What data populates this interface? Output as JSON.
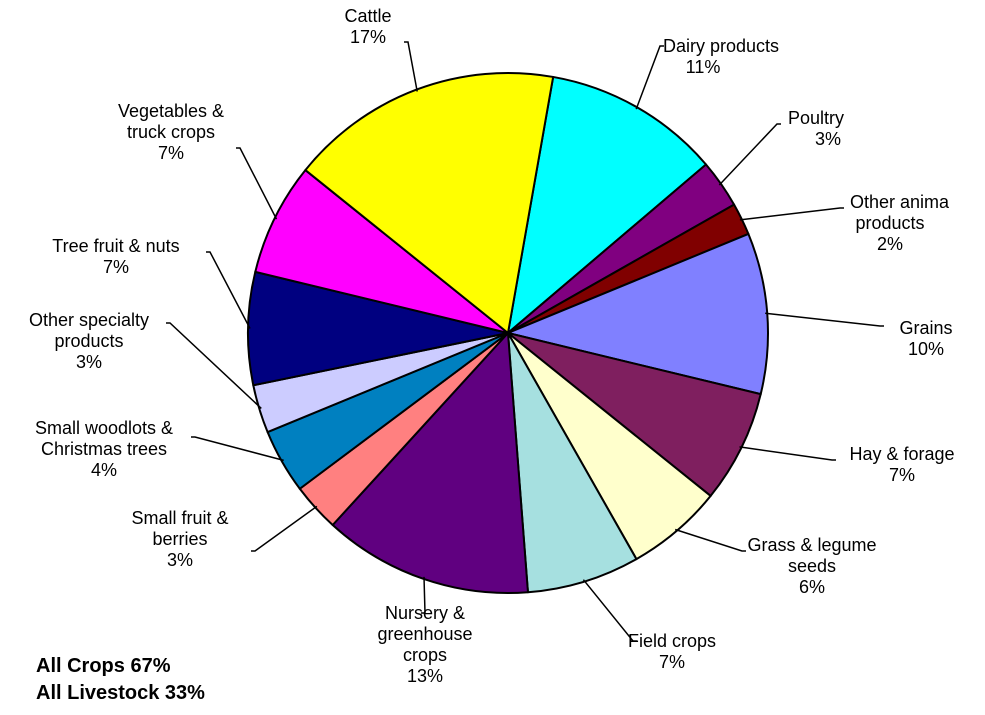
{
  "chart_data": {
    "type": "pie",
    "start_angle_deg": 10,
    "direction": "clockwise",
    "slices": [
      {
        "name": "Dairy products",
        "label_lines": [
          "Dairy products",
          "11%"
        ],
        "value": 11,
        "color": "#00FFFF"
      },
      {
        "name": "Poultry",
        "label_lines": [
          "Poultry",
          "3%"
        ],
        "value": 3,
        "color": "#800080"
      },
      {
        "name": "Other anima products",
        "label_lines": [
          "Other anima",
          "products",
          "2%"
        ],
        "value": 2,
        "color": "#800000"
      },
      {
        "name": "Grains",
        "label_lines": [
          "Grains",
          "10%"
        ],
        "value": 10,
        "color": "#8080FF"
      },
      {
        "name": "Hay & forage",
        "label_lines": [
          "Hay & forage",
          "7%"
        ],
        "value": 7,
        "color": "#7F1F5F"
      },
      {
        "name": "Grass & legume seeds",
        "label_lines": [
          "Grass & legume",
          "seeds",
          "6%"
        ],
        "value": 6,
        "color": "#FFFFCC"
      },
      {
        "name": "Field crops",
        "label_lines": [
          "Field crops",
          "7%"
        ],
        "value": 7,
        "color": "#A6E0E0"
      },
      {
        "name": "Nursery & greenhouse crops",
        "label_lines": [
          "Nursery &",
          "greenhouse",
          "crops",
          "13%"
        ],
        "value": 13,
        "color": "#600080"
      },
      {
        "name": "Small fruit & berries",
        "label_lines": [
          "Small fruit &",
          "berries",
          "3%"
        ],
        "value": 3,
        "color": "#FF8080"
      },
      {
        "name": "Small woodlots & Christmas trees",
        "label_lines": [
          "Small woodlots &",
          "Christmas trees",
          "4%"
        ],
        "value": 4,
        "color": "#0080C0"
      },
      {
        "name": "Other specialty products",
        "label_lines": [
          "Other specialty",
          "products",
          "3%"
        ],
        "value": 3,
        "color": "#CCCCFF"
      },
      {
        "name": "Tree fruit & nuts",
        "label_lines": [
          "Tree fruit & nuts",
          "7%"
        ],
        "value": 7,
        "color": "#000080"
      },
      {
        "name": "Vegetables & truck crops",
        "label_lines": [
          "Vegetables &",
          "truck crops",
          "7%"
        ],
        "value": 7,
        "color": "#FF00FF"
      },
      {
        "name": "Cattle",
        "label_lines": [
          "Cattle",
          "17%"
        ],
        "value": 17,
        "color": "#FFFF00"
      }
    ]
  },
  "summary": {
    "crops": "All Crops 67%",
    "livestock": "All Livestock 33%"
  }
}
